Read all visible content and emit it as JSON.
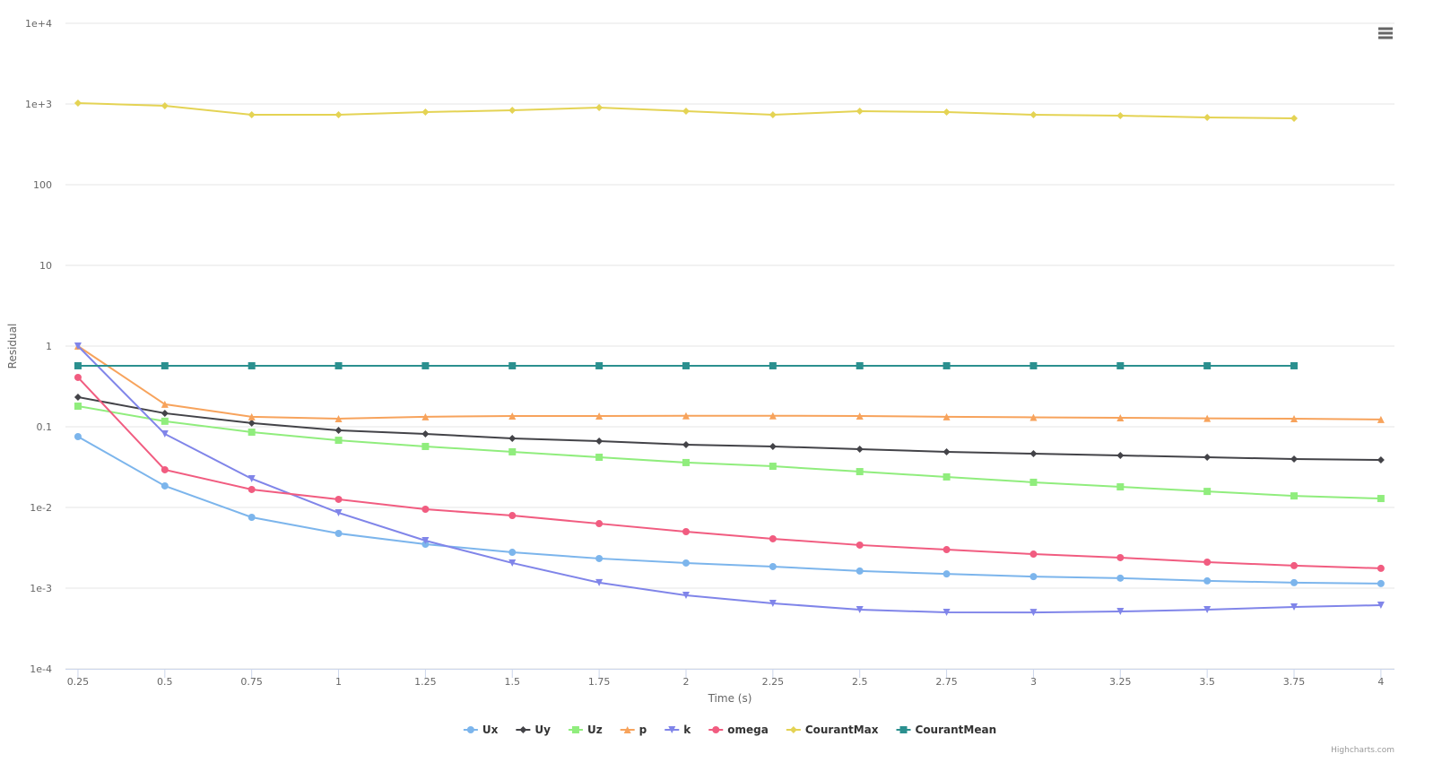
{
  "chart_data": {
    "type": "line",
    "x_label": "Time (s)",
    "y_label": "Residual",
    "credits": "Highcharts.com",
    "x": [
      0.25,
      0.5,
      0.75,
      1,
      1.25,
      1.5,
      1.75,
      2,
      2.25,
      2.5,
      2.75,
      3,
      3.25,
      3.5,
      3.75,
      4
    ],
    "xlim": [
      0.214,
      4.039
    ],
    "xticks": [
      0.25,
      0.5,
      0.75,
      1,
      1.25,
      1.5,
      1.75,
      2,
      2.25,
      2.5,
      2.75,
      3,
      3.25,
      3.5,
      3.75,
      4
    ],
    "ylim": [
      0.0001,
      10000
    ],
    "log_y": true,
    "grid": true,
    "legend": "bottom",
    "yticks": [
      {
        "value": 0.0001,
        "label": "1e-4"
      },
      {
        "value": 0.001,
        "label": "1e-3"
      },
      {
        "value": 0.01,
        "label": "1e-2"
      },
      0.1,
      1,
      10,
      100,
      {
        "value": 1000,
        "label": "1e+3"
      },
      {
        "value": 10000,
        "label": "1e+4"
      }
    ],
    "series": [
      {
        "name": "Ux",
        "color": "#7cb5ec",
        "marker": "circle",
        "values": [
          0.0755,
          0.0185,
          0.00755,
          0.00476,
          0.0035,
          0.00278,
          0.00233,
          0.00205,
          0.00185,
          0.00163,
          0.0015,
          0.00139,
          0.00133,
          0.00123,
          0.00117,
          0.00114
        ]
      },
      {
        "name": "Uy",
        "color": "#434348",
        "marker": "diamond",
        "values": [
          0.233,
          0.147,
          0.111,
          0.0903,
          0.0815,
          0.0717,
          0.0665,
          0.06,
          0.057,
          0.0528,
          0.0489,
          0.0464,
          0.0441,
          0.0419,
          0.0398,
          0.0388
        ]
      },
      {
        "name": "Uz",
        "color": "#90ed7d",
        "marker": "square",
        "values": [
          0.18,
          0.117,
          0.0858,
          0.068,
          0.057,
          0.0489,
          0.0419,
          0.036,
          0.0324,
          0.0278,
          0.0239,
          0.0205,
          0.018,
          0.0158,
          0.0139,
          0.0129
        ]
      },
      {
        "name": "p",
        "color": "#f7a35c",
        "marker": "triangle",
        "values": [
          1,
          0.19,
          0.133,
          0.126,
          0.133,
          0.136,
          0.136,
          0.137,
          0.137,
          0.136,
          0.133,
          0.131,
          0.129,
          0.127,
          0.126,
          0.123
        ]
      },
      {
        "name": "k",
        "color": "#8085e9",
        "marker": "triangle-down",
        "values": [
          1,
          0.0815,
          0.0227,
          0.00858,
          0.00388,
          0.00205,
          0.00117,
          0.000815,
          0.000648,
          0.000541,
          0.000501,
          0.0005,
          0.000514,
          0.000541,
          0.000585,
          0.000615
        ]
      },
      {
        "name": "omega",
        "color": "#f15c80",
        "marker": "circle",
        "values": [
          0.409,
          0.0293,
          0.0167,
          0.0126,
          0.0095,
          0.00794,
          0.0063,
          0.00501,
          0.00409,
          0.00342,
          0.003,
          0.00264,
          0.00239,
          0.0021,
          0.0019,
          0.00176
        ]
      },
      {
        "name": "CourantMax",
        "color": "#e4d354",
        "marker": "diamond",
        "values": [
          1026,
          950,
          736,
          736,
          794,
          836,
          903,
          815,
          736,
          815,
          794,
          736,
          717,
          681,
          664,
          null
        ]
      },
      {
        "name": "CourantMean",
        "color": "#2b908f",
        "marker": "square",
        "values": [
          0.57,
          0.57,
          0.57,
          0.57,
          0.57,
          0.57,
          0.57,
          0.57,
          0.57,
          0.57,
          0.57,
          0.57,
          0.57,
          0.57,
          0.57,
          null
        ]
      }
    ]
  }
}
